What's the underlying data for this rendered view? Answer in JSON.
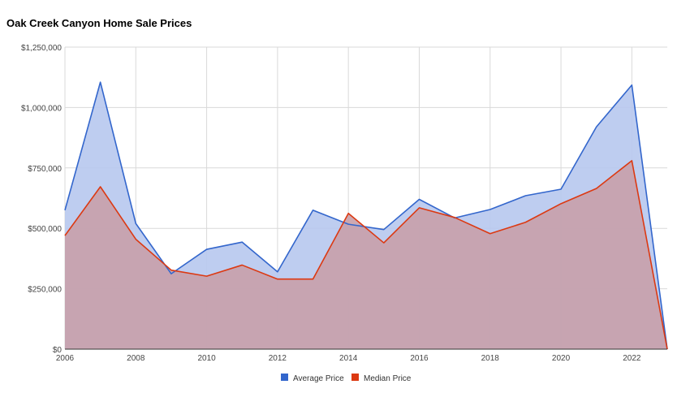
{
  "chart_data": {
    "type": "area",
    "title": "Oak Creek Canyon Home Sale Prices",
    "x": [
      2006,
      2007,
      2008,
      2009,
      2010,
      2011,
      2012,
      2013,
      2014,
      2015,
      2016,
      2017,
      2018,
      2019,
      2020,
      2021,
      2022,
      2023
    ],
    "xlim": [
      2006,
      2023
    ],
    "x_ticks": [
      2006,
      2008,
      2010,
      2012,
      2014,
      2016,
      2018,
      2020,
      2022
    ],
    "x_tick_labels": [
      "2006",
      "2008",
      "2010",
      "2012",
      "2014",
      "2016",
      "2018",
      "2020",
      "2022"
    ],
    "ylim": [
      0,
      1250000
    ],
    "y_ticks": [
      0,
      250000,
      500000,
      750000,
      1000000,
      1250000
    ],
    "y_tick_labels": [
      "$0",
      "$250,000",
      "$500,000",
      "$750,000",
      "$1,000,000",
      "$1,250,000"
    ],
    "series": [
      {
        "name": "Average Price",
        "color": "#3366cc",
        "fill": "#b7c8ee",
        "values": [
          575000,
          1105000,
          520000,
          312000,
          413000,
          443000,
          320000,
          575000,
          517000,
          495000,
          620000,
          543000,
          578000,
          635000,
          662000,
          920000,
          1093000,
          0
        ]
      },
      {
        "name": "Median Price",
        "color": "#dc3912",
        "fill": "#c8a0aa",
        "values": [
          470000,
          672000,
          455000,
          327000,
          302000,
          348000,
          290000,
          290000,
          562000,
          440000,
          585000,
          545000,
          478000,
          525000,
          602000,
          665000,
          780000,
          0
        ]
      }
    ],
    "grid": true,
    "legend_position": "bottom"
  }
}
